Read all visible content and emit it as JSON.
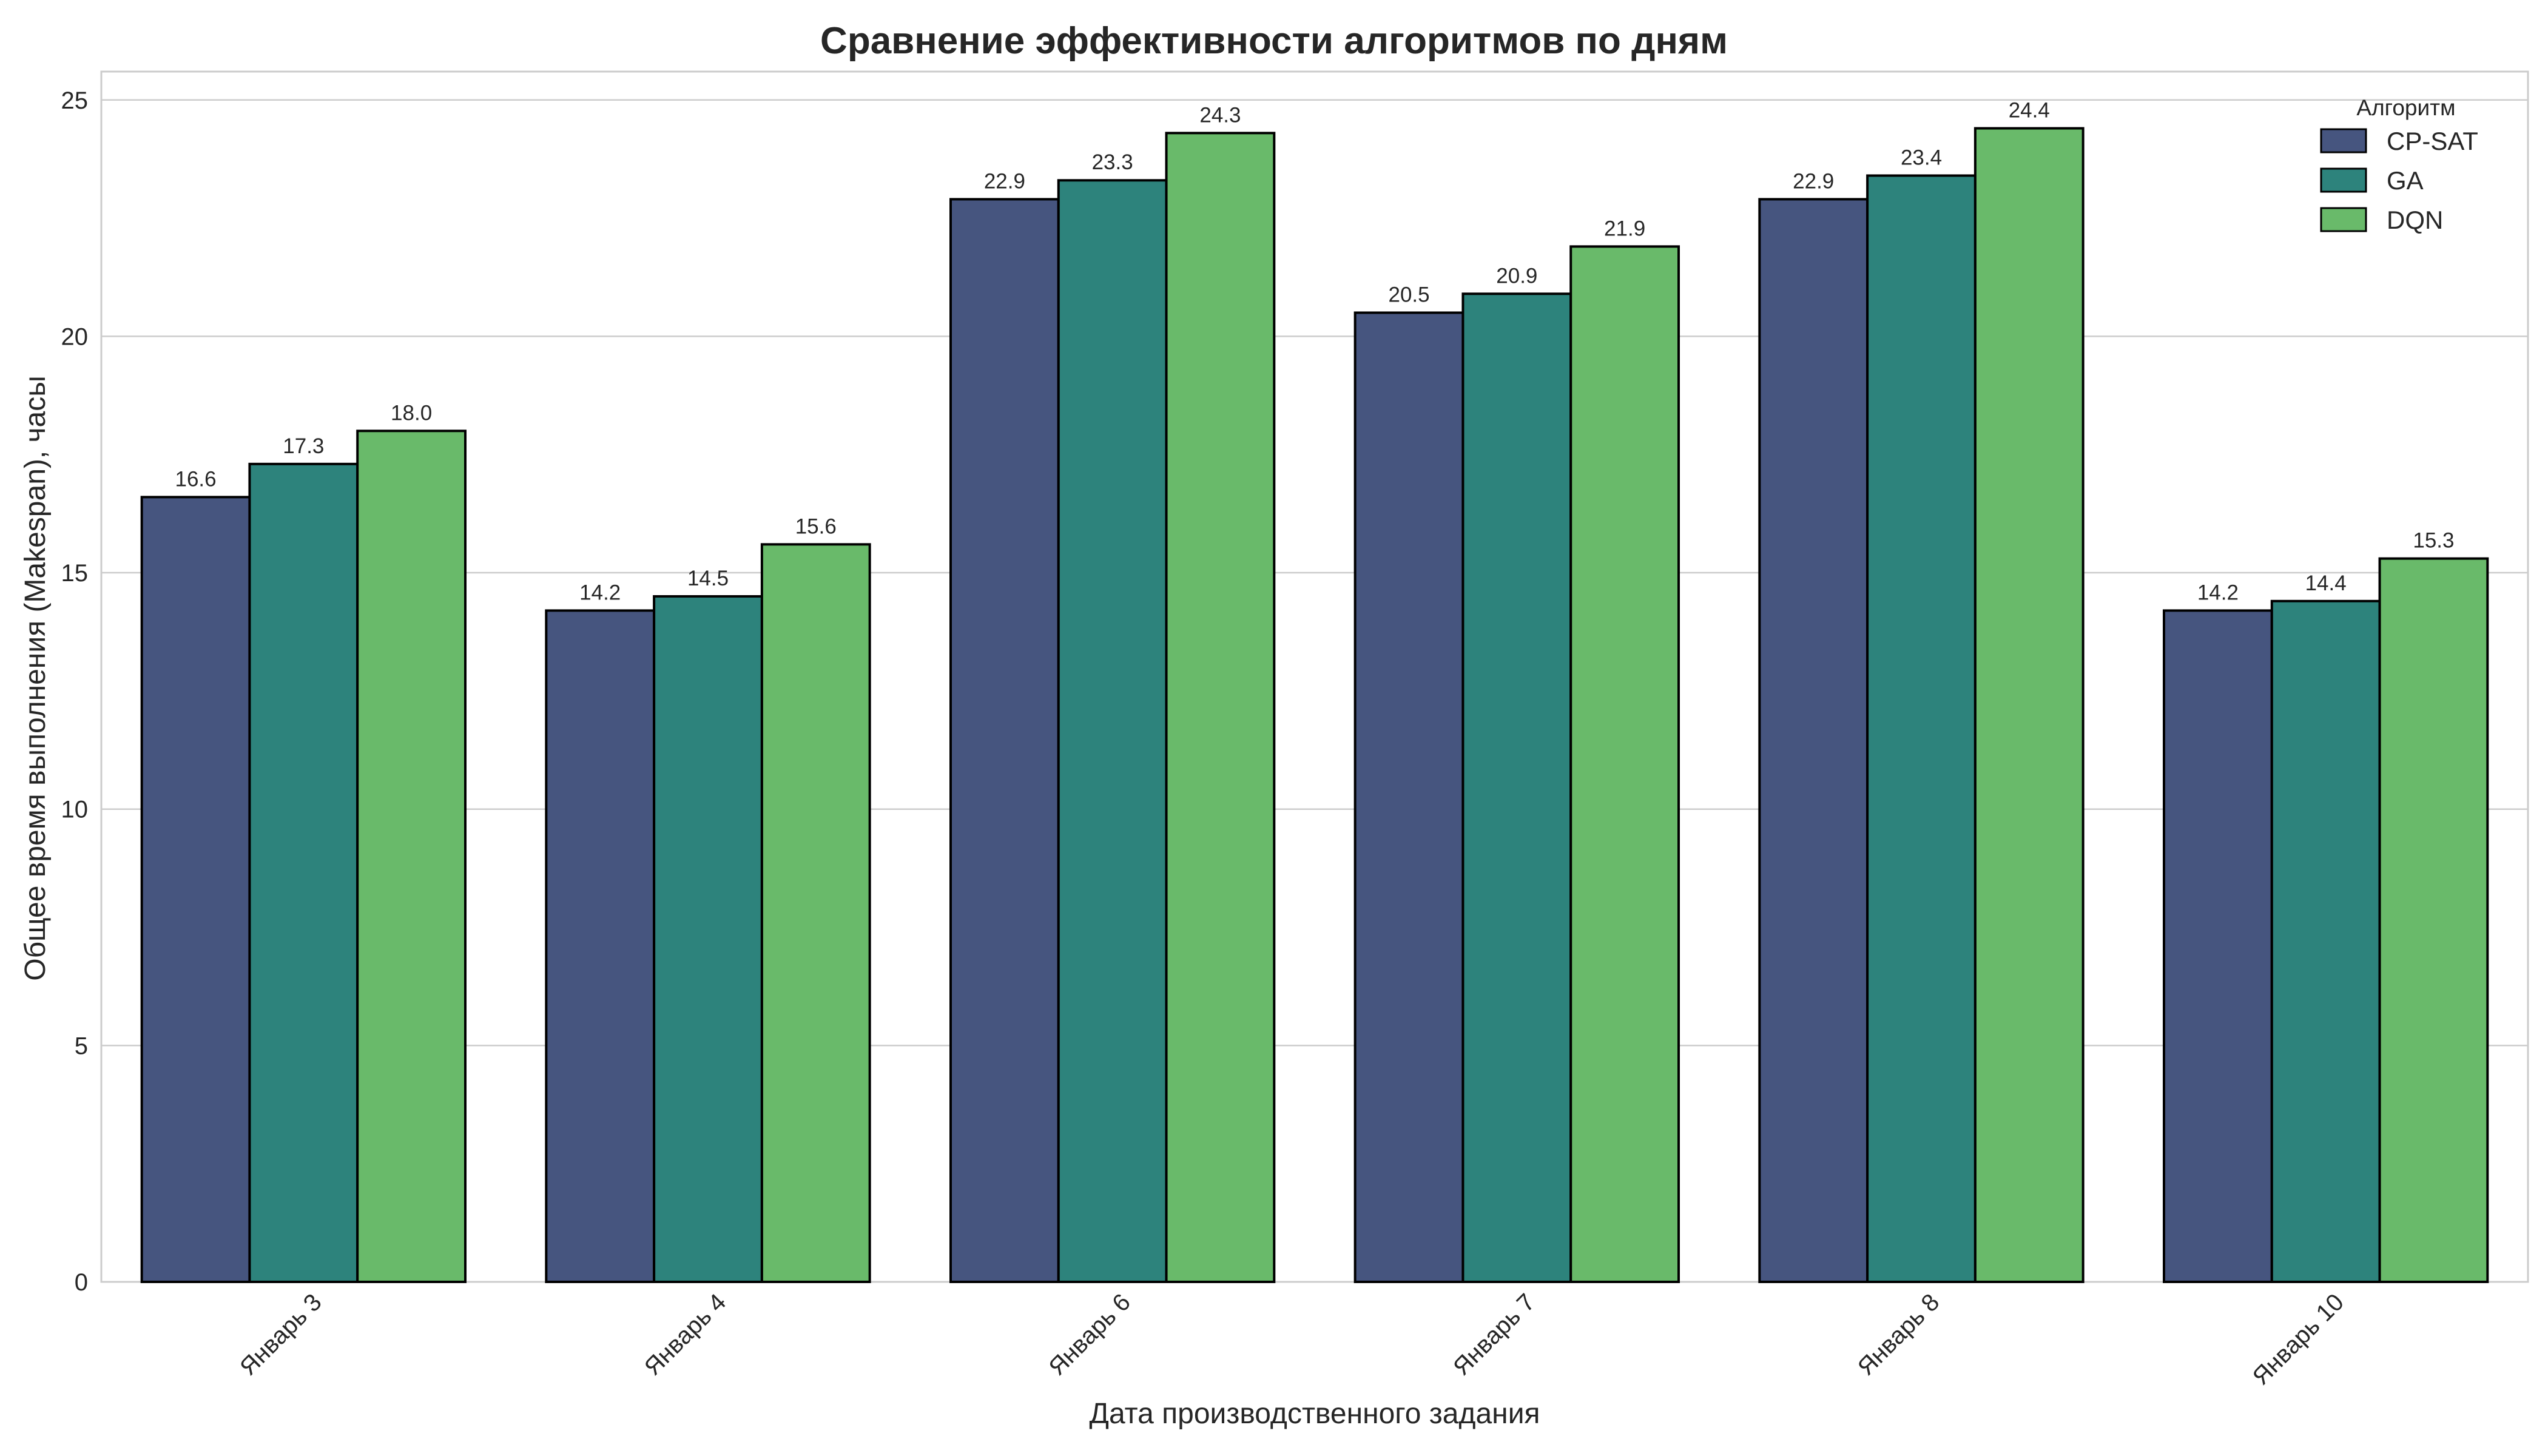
{
  "chart_data": {
    "type": "bar",
    "title": "Сравнение эффективности алгоритмов по дням",
    "xlabel": "Дата производственного задания",
    "ylabel": "Общее время выполнения (Makespan), часы",
    "categories": [
      "Январь 3",
      "Январь 4",
      "Январь 6",
      "Январь 7",
      "Январь 8",
      "Январь 10"
    ],
    "series": [
      {
        "name": "CP-SAT",
        "color": "#46557f",
        "values": [
          16.6,
          14.2,
          22.9,
          20.5,
          22.9,
          14.2
        ]
      },
      {
        "name": "GA",
        "color": "#2d837c",
        "values": [
          17.3,
          14.5,
          23.3,
          20.9,
          23.4,
          14.4
        ]
      },
      {
        "name": "DQN",
        "color": "#69ba6a",
        "values": [
          18.0,
          15.6,
          24.3,
          21.9,
          24.4,
          15.3
        ]
      }
    ],
    "data_labels": [
      [
        "16.6",
        "14.2",
        "22.9",
        "20.5",
        "22.9",
        "14.2"
      ],
      [
        "17.3",
        "14.5",
        "23.3",
        "20.9",
        "23.4",
        "14.4"
      ],
      [
        "18.0",
        "15.6",
        "24.3",
        "21.9",
        "24.4",
        "15.3"
      ]
    ],
    "ylim": [
      0,
      25.6
    ],
    "yticks": [
      0,
      5,
      10,
      15,
      20,
      25
    ],
    "grid": true,
    "legend": {
      "title": "Алгоритм",
      "position": "top-right"
    }
  }
}
